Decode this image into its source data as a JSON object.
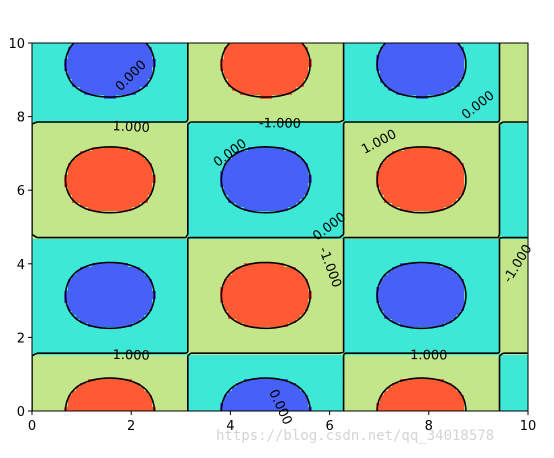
{
  "chart_data": {
    "type": "contourf",
    "title": "",
    "xlabel": "",
    "ylabel": "",
    "xlim": [
      0,
      10
    ],
    "ylim": [
      0,
      10
    ],
    "x_ticks": [
      "0",
      "2",
      "4",
      "6",
      "8",
      "10"
    ],
    "y_ticks": [
      "0",
      "2",
      "4",
      "6",
      "8",
      "10"
    ],
    "field": "sin(x) * cos(y) grid, z in [-1.6, 1.6]",
    "levels": [
      -1.0,
      0.0,
      1.0
    ],
    "level_colors": {
      "below_-1": "#4660f8",
      "-1_to_0": "#3de8d6",
      "0_to_1": "#c3e68a",
      "above_1": "#ff5a33"
    },
    "contour_labels": [
      {
        "text": "0.000",
        "x": 2.0,
        "y": 9.1
      },
      {
        "text": "-1.000",
        "x": 5.0,
        "y": 7.8
      },
      {
        "text": "0.000",
        "x": 9.0,
        "y": 8.3
      },
      {
        "text": "1.000",
        "x": 2.0,
        "y": 7.7
      },
      {
        "text": "0.000",
        "x": 4.0,
        "y": 7.0
      },
      {
        "text": "1.000",
        "x": 7.0,
        "y": 7.3
      },
      {
        "text": "0.000",
        "x": 6.0,
        "y": 5.0
      },
      {
        "text": "-1.000",
        "x": 6.0,
        "y": 3.9
      },
      {
        "text": "-1.000",
        "x": 9.8,
        "y": 4.0
      },
      {
        "text": "1.000",
        "x": 2.0,
        "y": 1.5
      },
      {
        "text": "1.000",
        "x": 8.0,
        "y": 1.5
      },
      {
        "text": "0.000",
        "x": 5.0,
        "y": 0.1
      }
    ]
  },
  "watermark": "https://blog.csdn.net/qq_34018578"
}
